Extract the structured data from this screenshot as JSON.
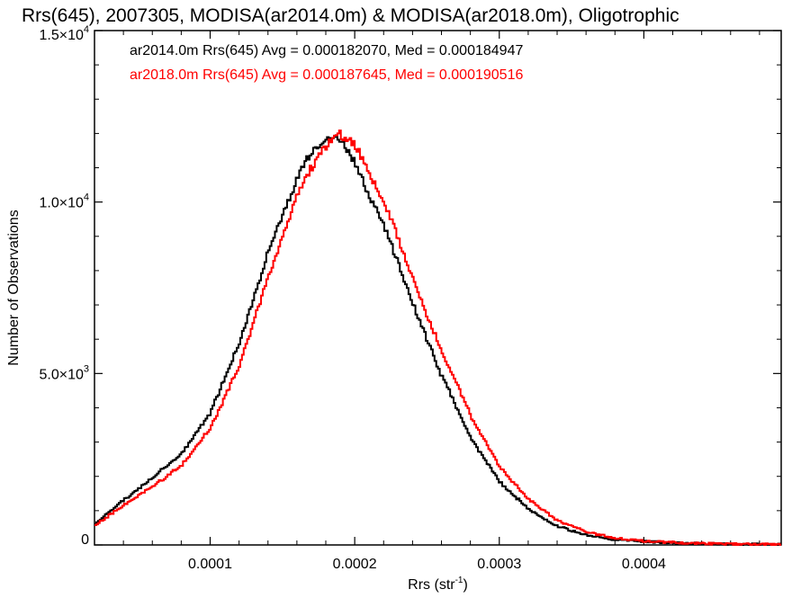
{
  "chart_data": {
    "type": "line",
    "title": "Rrs(645), 2007305, MODISA(ar2014.0m) & MODISA(ar2018.0m), Oligotrophic",
    "xlabel": "Rrs (str",
    "xlabel_sup": "-1",
    "xlabel_close": ")",
    "ylabel": "Number of Observations",
    "xlim": [
      2e-05,
      0.000495
    ],
    "ylim": [
      0,
      15000
    ],
    "x_ticks": [
      {
        "value": 0.0001,
        "label": "0.0001"
      },
      {
        "value": 0.0002,
        "label": "0.0002"
      },
      {
        "value": 0.0003,
        "label": "0.0003"
      },
      {
        "value": 0.0004,
        "label": "0.0004"
      }
    ],
    "y_ticks": [
      {
        "value": 0,
        "mant": "0",
        "exp": ""
      },
      {
        "value": 5000,
        "mant": "5.0×10",
        "exp": "3"
      },
      {
        "value": 10000,
        "mant": "1.0×10",
        "exp": "4"
      },
      {
        "value": 15000,
        "mant": "1.5×10",
        "exp": "4"
      }
    ],
    "grid": false,
    "legend_position": "top-left",
    "series": [
      {
        "name": "ar2014.0m Rrs(645) Avg = 0.000182070, Med = 0.000184947",
        "color": "#000000",
        "x": [
          2e-05,
          4e-05,
          6e-05,
          8e-05,
          0.0001,
          0.00012,
          0.00014,
          0.00016,
          0.00017,
          0.00018,
          0.00019,
          0.0002,
          0.00021,
          0.00022,
          0.00023,
          0.00024,
          0.00025,
          0.00026,
          0.00028,
          0.0003,
          0.00032,
          0.00034,
          0.00036,
          0.00038,
          0.0004,
          0.00043,
          0.00046,
          0.000495
        ],
        "y": [
          620,
          1300,
          1950,
          2650,
          3850,
          5850,
          8500,
          10700,
          11450,
          11850,
          11800,
          11150,
          10200,
          9350,
          8250,
          7050,
          6000,
          4950,
          3150,
          1850,
          1050,
          550,
          280,
          160,
          100,
          50,
          25,
          10
        ]
      },
      {
        "name": "ar2018.0m Rrs(645) Avg = 0.000187645, Med = 0.000190516",
        "color": "#ff0000",
        "x": [
          2e-05,
          4e-05,
          6e-05,
          8e-05,
          0.0001,
          0.00012,
          0.00014,
          0.00016,
          0.00017,
          0.00018,
          0.00019,
          0.0002,
          0.00021,
          0.00022,
          0.00023,
          0.00024,
          0.00025,
          0.00026,
          0.00028,
          0.0003,
          0.00032,
          0.00034,
          0.00036,
          0.00038,
          0.0004,
          0.00043,
          0.00046,
          0.000495
        ],
        "y": [
          560,
          1150,
          1700,
          2300,
          3400,
          5200,
          7800,
          10150,
          11000,
          11650,
          11950,
          11700,
          10850,
          10000,
          8950,
          7800,
          6700,
          5650,
          3800,
          2300,
          1350,
          720,
          380,
          200,
          110,
          55,
          25,
          10
        ]
      }
    ]
  }
}
